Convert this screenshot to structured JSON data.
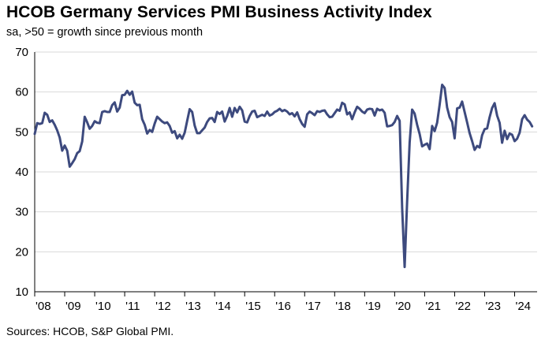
{
  "chart_data": {
    "type": "line",
    "title": "HCOB Germany Services PMI Business Activity Index",
    "subtitle": "sa, >50 = growth since previous month",
    "source": "Sources: HCOB,  S&P Global PMI.",
    "ylim": [
      10,
      70
    ],
    "yticks": [
      10,
      20,
      30,
      40,
      50,
      60,
      70
    ],
    "xlim": [
      2008.0,
      2024.75
    ],
    "xticks": [
      {
        "value": 2008,
        "label": "'08"
      },
      {
        "value": 2009,
        "label": "'09"
      },
      {
        "value": 2010,
        "label": "'10"
      },
      {
        "value": 2011,
        "label": "'11"
      },
      {
        "value": 2012,
        "label": "'12"
      },
      {
        "value": 2013,
        "label": "'13"
      },
      {
        "value": 2014,
        "label": "'14"
      },
      {
        "value": 2015,
        "label": "'15"
      },
      {
        "value": 2016,
        "label": "'16"
      },
      {
        "value": 2017,
        "label": "'17"
      },
      {
        "value": 2018,
        "label": "'18"
      },
      {
        "value": 2019,
        "label": "'19"
      },
      {
        "value": 2020,
        "label": "'20"
      },
      {
        "value": 2021,
        "label": "'21"
      },
      {
        "value": 2022,
        "label": "'22"
      },
      {
        "value": 2023,
        "label": "'23"
      },
      {
        "value": 2024,
        "label": "'24"
      }
    ],
    "series": [
      {
        "name": "Services PMI Business Activity Index",
        "color": "#3d4a7e",
        "start": [
          2008,
          1
        ],
        "values": [
          49.5,
          52.2,
          52.0,
          52.2,
          54.8,
          54.3,
          52.5,
          52.9,
          51.8,
          50.4,
          48.6,
          45.3,
          46.6,
          45.3,
          41.3,
          42.2,
          43.2,
          44.7,
          45.2,
          47.6,
          53.8,
          52.4,
          50.8,
          51.5,
          52.7,
          52.3,
          52.2,
          55.0,
          55.2,
          55.0,
          55.0,
          56.7,
          57.4,
          55.1,
          56.1,
          59.2,
          59.3,
          60.3,
          59.3,
          60.1,
          57.3,
          56.7,
          56.8,
          53.2,
          51.8,
          49.6,
          50.5,
          50.0,
          52.1,
          53.8,
          53.2,
          52.6,
          52.2,
          52.4,
          51.5,
          49.8,
          50.2,
          48.4,
          49.3,
          48.3,
          49.8,
          52.8,
          55.7,
          55.0,
          51.6,
          49.7,
          49.7,
          50.4,
          51.1,
          52.5,
          53.4,
          53.5,
          52.5,
          55.0,
          54.5,
          55.1,
          52.6,
          54.0,
          56.0,
          53.8,
          56.0,
          54.9,
          56.3,
          55.4,
          52.6,
          52.4,
          54.0,
          55.1,
          55.3,
          53.7,
          54.0,
          54.3,
          54.0,
          55.1,
          54.1,
          54.4,
          55.0,
          55.3,
          55.8,
          55.2,
          55.5,
          55.1,
          54.4,
          54.7,
          53.9,
          54.9,
          53.2,
          52.0,
          51.3,
          54.4,
          55.1,
          54.7,
          54.2,
          55.2,
          55.0,
          55.3,
          55.4,
          54.4,
          53.7,
          53.8,
          54.7,
          55.6,
          55.3,
          57.3,
          56.9,
          54.4,
          54.9,
          53.2,
          54.9,
          56.3,
          55.8,
          55.1,
          54.7,
          55.6,
          55.8,
          55.7,
          54.1,
          55.8,
          55.4,
          55.6,
          54.8,
          51.4,
          51.5,
          51.7,
          52.5,
          54.0,
          52.8,
          31.0,
          16.2,
          32.6,
          47.3,
          55.6,
          54.6,
          51.8,
          49.5,
          46.4,
          46.8,
          47.1,
          45.7,
          51.5,
          50.2,
          52.3,
          56.8,
          61.8,
          61.0,
          56.1,
          53.7,
          52.5,
          48.4,
          55.9,
          56.1,
          57.6,
          55.0,
          52.4,
          49.7,
          47.7,
          45.5,
          46.5,
          46.1,
          49.2,
          50.7,
          50.9,
          53.7,
          56.0,
          57.2,
          54.1,
          52.3,
          47.3,
          50.3,
          48.2,
          49.6,
          49.3,
          47.7,
          48.3,
          49.8,
          53.2,
          54.2,
          53.1,
          52.5,
          51.4
        ]
      }
    ]
  }
}
